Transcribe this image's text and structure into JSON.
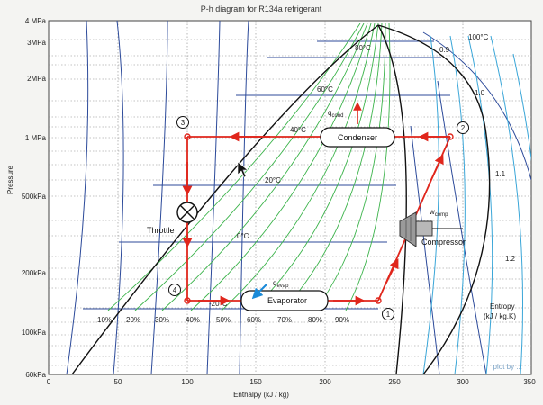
{
  "title": "P-h diagram for R134a refrigerant",
  "axes": {
    "xlabel": "Enthalpy (kJ / kg)",
    "ylabel": "Pressure",
    "x_ticks": [
      "0",
      "50",
      "100",
      "150",
      "200",
      "250",
      "300",
      "350"
    ],
    "y_ticks": [
      "4 MPa",
      "3MPa",
      "2MPa",
      "1 MPa",
      "500kPa",
      "200kPa",
      "100kPa",
      "60kPa"
    ]
  },
  "isotherms": [
    "80°C",
    "60°C",
    "40°C",
    "20°C",
    "0°C",
    "-20°C",
    "100°C"
  ],
  "quality_labels": [
    "10%",
    "20%",
    "30%",
    "40%",
    "50%",
    "60%",
    "70%",
    "80%",
    "90%"
  ],
  "entropy_values": [
    "0.9",
    "1.0",
    "1.1",
    "1.2"
  ],
  "entropy_label": {
    "line1": "Entropy",
    "line2": "(kJ / kg.K)"
  },
  "components": {
    "condenser": "Condenser",
    "evaporator": "Evaporator",
    "throttle": "Throttle",
    "compressor": "Compressor"
  },
  "heat_labels": {
    "q_cond": {
      "base": "q",
      "sub": "cond"
    },
    "q_evap": {
      "base": "q",
      "sub": "evap"
    },
    "w_comp": {
      "base": "w",
      "sub": "comp"
    }
  },
  "state_points": [
    "1",
    "2",
    "3",
    "4"
  ],
  "watermark": "plot by ...",
  "colors": {
    "cycle": "#e0261c",
    "quality_lines": "#3bb34a",
    "entropy_lines": "#3aa6d8",
    "isobars": "#2c4a9a",
    "dome": "#111111"
  }
}
